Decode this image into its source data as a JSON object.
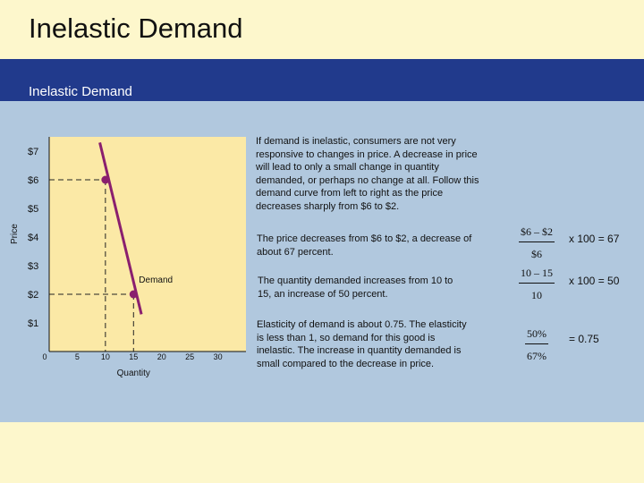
{
  "slide": {
    "title": "Inelastic Demand",
    "subtitle": "Inelastic Demand"
  },
  "colors": {
    "band": "#213a8c",
    "panel": "#b1c8de",
    "plot": "#fbe9a6",
    "curve": "#8a1f6e",
    "page": "#fdf7cc"
  },
  "explanation": {
    "intro": "If demand is inelastic, consumers are not very responsive to changes in price. A decrease in price will lead to only a small change in quantity demanded, or perhaps no change at all. Follow this demand curve from left to right as the price decreases sharply from $6 to $2.",
    "price_change": "The price decreases from $6 to $2, a decrease of about 67 percent.",
    "quantity_change": "The quantity demanded increases from 10 to 15,  an increase of 50 percent.",
    "elasticity": "Elasticity of demand is about 0.75. The elasticity is less than 1, so demand for this good is inelastic. The increase in quantity demanded is small compared to the decrease in price."
  },
  "formulas": {
    "price": {
      "numerator": "$6 – $2",
      "denominator": "$6",
      "result": "x  100 = 67"
    },
    "quantity": {
      "numerator": "10 – 15",
      "denominator": "10",
      "result": "x 100 = 50"
    },
    "elasticity": {
      "numerator": "50%",
      "denominator": "67%",
      "result": "= 0.75"
    }
  },
  "chart_data": {
    "type": "line",
    "title": "",
    "xlabel": "Quantity",
    "ylabel": "Price",
    "xlim": [
      0,
      35
    ],
    "ylim": [
      0,
      7.5
    ],
    "x_ticks": [
      {
        "value": 0,
        "label": "0"
      },
      {
        "value": 5,
        "label": "5"
      },
      {
        "value": 10,
        "label": "10"
      },
      {
        "value": 15,
        "label": "15"
      },
      {
        "value": 20,
        "label": "20"
      },
      {
        "value": 25,
        "label": "25"
      },
      {
        "value": 30,
        "label": "30"
      }
    ],
    "y_ticks": [
      {
        "value": 1,
        "label": "$1"
      },
      {
        "value": 2,
        "label": "$2"
      },
      {
        "value": 3,
        "label": "$3"
      },
      {
        "value": 4,
        "label": "$4"
      },
      {
        "value": 5,
        "label": "$5"
      },
      {
        "value": 6,
        "label": "$6"
      },
      {
        "value": 7,
        "label": "$7"
      }
    ],
    "series": [
      {
        "name": "Demand",
        "points": [
          {
            "x": 9,
            "y": 7.3
          },
          {
            "x": 16.4,
            "y": 1.3
          }
        ]
      }
    ],
    "highlighted_points": [
      {
        "x": 10,
        "y": 6
      },
      {
        "x": 15,
        "y": 2
      }
    ],
    "grid": false
  }
}
